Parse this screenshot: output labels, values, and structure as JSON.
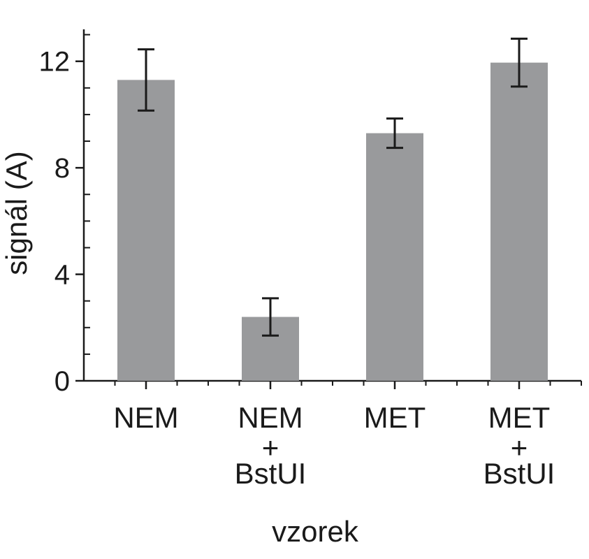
{
  "chart_data": {
    "type": "bar",
    "categories": [
      [
        "NEM"
      ],
      [
        "NEM",
        "+",
        "BstUI"
      ],
      [
        "MET"
      ],
      [
        "MET",
        "+",
        "BstUI"
      ]
    ],
    "values": [
      11.3,
      2.4,
      9.3,
      11.95
    ],
    "errors": [
      1.15,
      0.7,
      0.55,
      0.9
    ],
    "xlabel": "vzorek",
    "ylabel": "signál (A)",
    "ylim": [
      0,
      13.2
    ],
    "yticks": [
      0,
      4,
      8,
      12
    ],
    "grid": false,
    "legend": "none",
    "colors": {
      "bar": "#999a9c",
      "axis": "#1a1a1a"
    }
  }
}
